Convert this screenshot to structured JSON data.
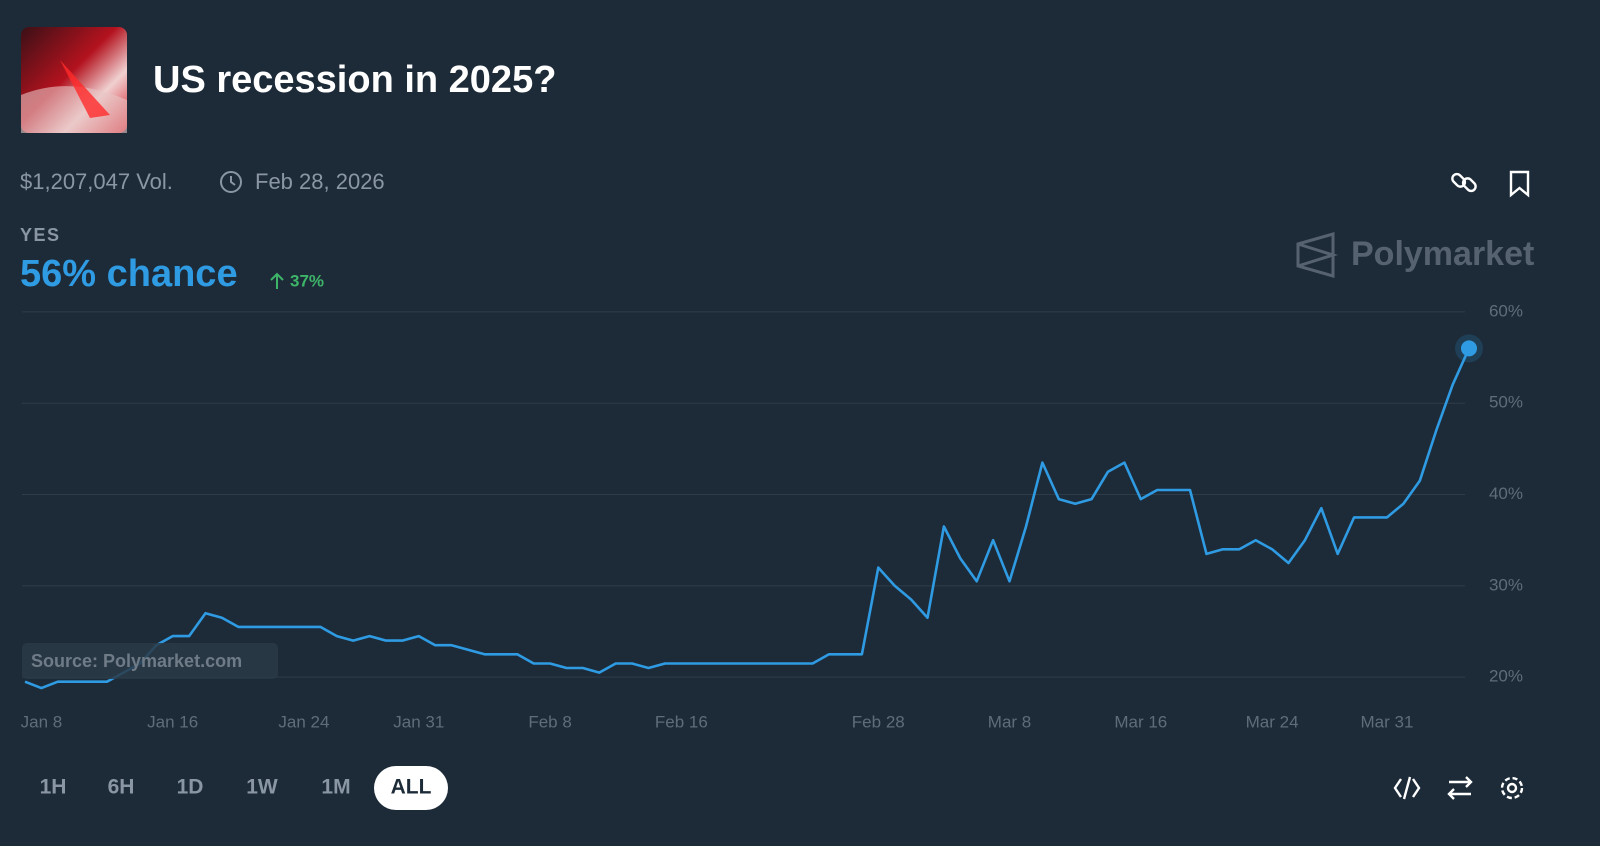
{
  "header": {
    "title": "US recession in 2025?",
    "volume": "$1,207,047 Vol.",
    "date": "Feb 28, 2026"
  },
  "outcome": {
    "label": "YES",
    "chance": "56% chance",
    "change": "37%"
  },
  "brand": "Polymarket",
  "source": "Source: Polymarket.com",
  "ranges": [
    "1H",
    "6H",
    "1D",
    "1W",
    "1M",
    "ALL"
  ],
  "active_range": 5,
  "chart_data": {
    "type": "line",
    "color": "#2f9be3",
    "categories": [
      null,
      "Jan 8",
      null,
      null,
      null,
      null,
      null,
      null,
      null,
      "Jan 16",
      null,
      null,
      null,
      null,
      null,
      null,
      null,
      "Jan 24",
      null,
      null,
      null,
      null,
      null,
      null,
      "Jan 31",
      null,
      null,
      null,
      null,
      null,
      null,
      null,
      "Feb 8",
      null,
      null,
      null,
      null,
      null,
      null,
      null,
      "Feb 16",
      null,
      null,
      null,
      null,
      null,
      null,
      null,
      null,
      null,
      null,
      null,
      "Feb 28",
      null,
      null,
      null,
      null,
      null,
      null,
      null,
      "Mar 8",
      null,
      null,
      null,
      null,
      null,
      null,
      null,
      "Mar 16",
      null,
      null,
      null,
      null,
      null,
      null,
      null,
      "Mar 24",
      null,
      null,
      null,
      null,
      null,
      null,
      "Mar 31",
      null,
      null,
      null,
      null,
      null
    ],
    "values": [
      19.5,
      18.8,
      19.5,
      19.5,
      19.5,
      19.5,
      20.5,
      21.5,
      23.5,
      24.5,
      24.5,
      27,
      26.5,
      25.5,
      25.5,
      25.5,
      25.5,
      25.5,
      25.5,
      24.5,
      24,
      24.5,
      24,
      24,
      24.5,
      23.5,
      23.5,
      23,
      22.5,
      22.5,
      22.5,
      21.5,
      21.5,
      21,
      21,
      20.5,
      21.5,
      21.5,
      21,
      21.5,
      21.5,
      21.5,
      21.5,
      21.5,
      21.5,
      21.5,
      21.5,
      21.5,
      21.5,
      22.5,
      22.5,
      22.5,
      32,
      30,
      28.5,
      26.5,
      36.5,
      33,
      30.5,
      35,
      30.5,
      36.5,
      43.5,
      39.5,
      39,
      39.5,
      42.5,
      43.5,
      39.5,
      40.5,
      40.5,
      40.5,
      33.5,
      34,
      34,
      35,
      34,
      32.5,
      35,
      38.5,
      33.5,
      37.5,
      37.5,
      37.5,
      39,
      41.5,
      47,
      52,
      56
    ],
    "ylim": [
      17.5,
      61.3
    ],
    "yticks": [
      {
        "value": 20,
        "label": "20%"
      },
      {
        "value": 30,
        "label": "30%"
      },
      {
        "value": 40,
        "label": "40%"
      },
      {
        "value": 50,
        "label": "50%"
      },
      {
        "value": 60,
        "label": "60%"
      }
    ],
    "grid": true
  }
}
